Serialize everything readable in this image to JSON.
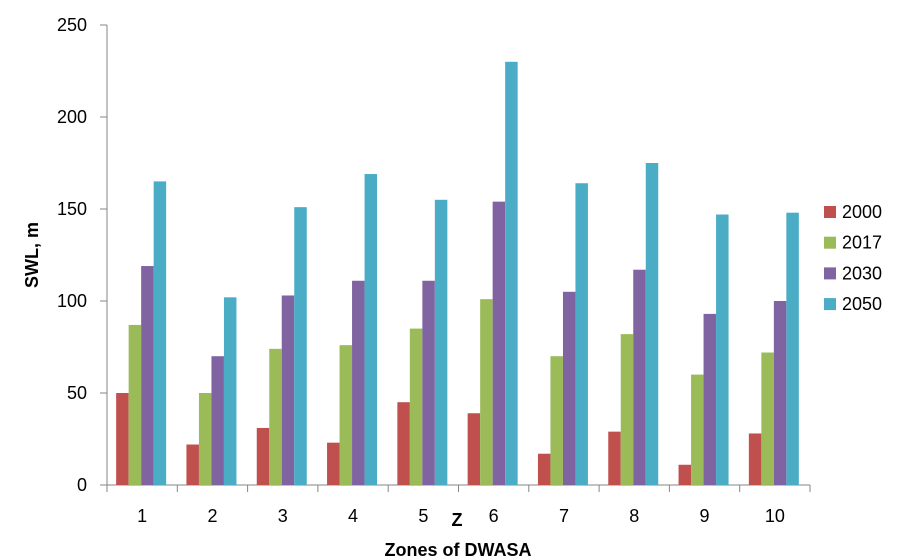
{
  "chart_data": {
    "type": "bar",
    "categories": [
      "1",
      "2",
      "3",
      "4",
      "5",
      "6",
      "7",
      "8",
      "9",
      "10"
    ],
    "series": [
      {
        "name": "2000",
        "color": "#C0504D",
        "values": [
          50,
          22,
          31,
          23,
          45,
          39,
          17,
          29,
          11,
          28
        ]
      },
      {
        "name": "2017",
        "color": "#9BBB59",
        "values": [
          87,
          50,
          74,
          76,
          85,
          101,
          70,
          82,
          60,
          72
        ]
      },
      {
        "name": "2030",
        "color": "#8064A2",
        "values": [
          119,
          70,
          103,
          111,
          111,
          154,
          105,
          117,
          93,
          100
        ]
      },
      {
        "name": "2050",
        "color": "#4BACC6",
        "values": [
          165,
          102,
          151,
          169,
          155,
          230,
          164,
          175,
          147,
          148
        ]
      }
    ],
    "ylim": [
      0,
      250
    ],
    "yticks": [
      0,
      50,
      100,
      150,
      200,
      250
    ],
    "ylabel": "SWL, m",
    "xlabel": "Zones of DWASA",
    "stray_label": "Z",
    "grid": false,
    "legend_position": "right"
  }
}
